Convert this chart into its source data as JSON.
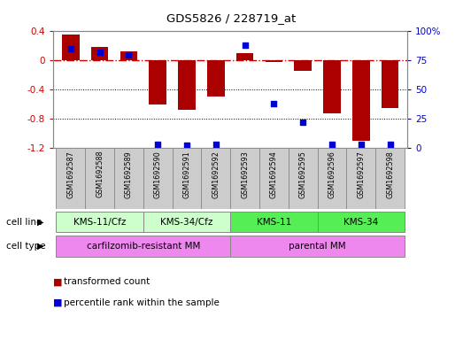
{
  "title": "GDS5826 / 228719_at",
  "samples": [
    "GSM1692587",
    "GSM1692588",
    "GSM1692589",
    "GSM1692590",
    "GSM1692591",
    "GSM1692592",
    "GSM1692593",
    "GSM1692594",
    "GSM1692595",
    "GSM1692596",
    "GSM1692597",
    "GSM1692598"
  ],
  "transformed_counts": [
    0.35,
    0.18,
    0.12,
    -0.6,
    -0.68,
    -0.5,
    0.1,
    -0.02,
    -0.14,
    -0.72,
    -1.1,
    -0.65
  ],
  "percentile_ranks": [
    85,
    82,
    80,
    3,
    2,
    3,
    88,
    38,
    22,
    3,
    3,
    3
  ],
  "cell_line_groups": [
    {
      "label": "KMS-11/Cfz",
      "start": 0,
      "end": 3,
      "color": "#ccffcc"
    },
    {
      "label": "KMS-34/Cfz",
      "start": 3,
      "end": 6,
      "color": "#ccffcc"
    },
    {
      "label": "KMS-11",
      "start": 6,
      "end": 9,
      "color": "#55ee55"
    },
    {
      "label": "KMS-34",
      "start": 9,
      "end": 12,
      "color": "#55ee55"
    }
  ],
  "cell_type_groups": [
    {
      "label": "carfilzomib-resistant MM",
      "start": 0,
      "end": 6,
      "color": "#ee88ee"
    },
    {
      "label": "parental MM",
      "start": 6,
      "end": 12,
      "color": "#ee88ee"
    }
  ],
  "bar_color": "#aa0000",
  "dot_color": "#0000cc",
  "left_ylim": [
    -1.2,
    0.4
  ],
  "right_ylim": [
    0,
    100
  ],
  "left_yticks": [
    -1.2,
    -0.8,
    -0.4,
    0.0,
    0.4
  ],
  "right_yticks": [
    0,
    25,
    50,
    75,
    100
  ],
  "left_yticklabels": [
    "-1.2",
    "-0.8",
    "-0.4",
    "0",
    "0.4"
  ],
  "right_yticklabels": [
    "0",
    "25",
    "50",
    "75",
    "100%"
  ],
  "zero_line_color": "#cc0000",
  "grid_color": "#000000",
  "bg_color": "#ffffff",
  "plot_bg": "#ffffff",
  "cell_line_label": "cell line",
  "cell_type_label": "cell type",
  "sample_box_color": "#cccccc",
  "sample_box_edge": "#888888"
}
